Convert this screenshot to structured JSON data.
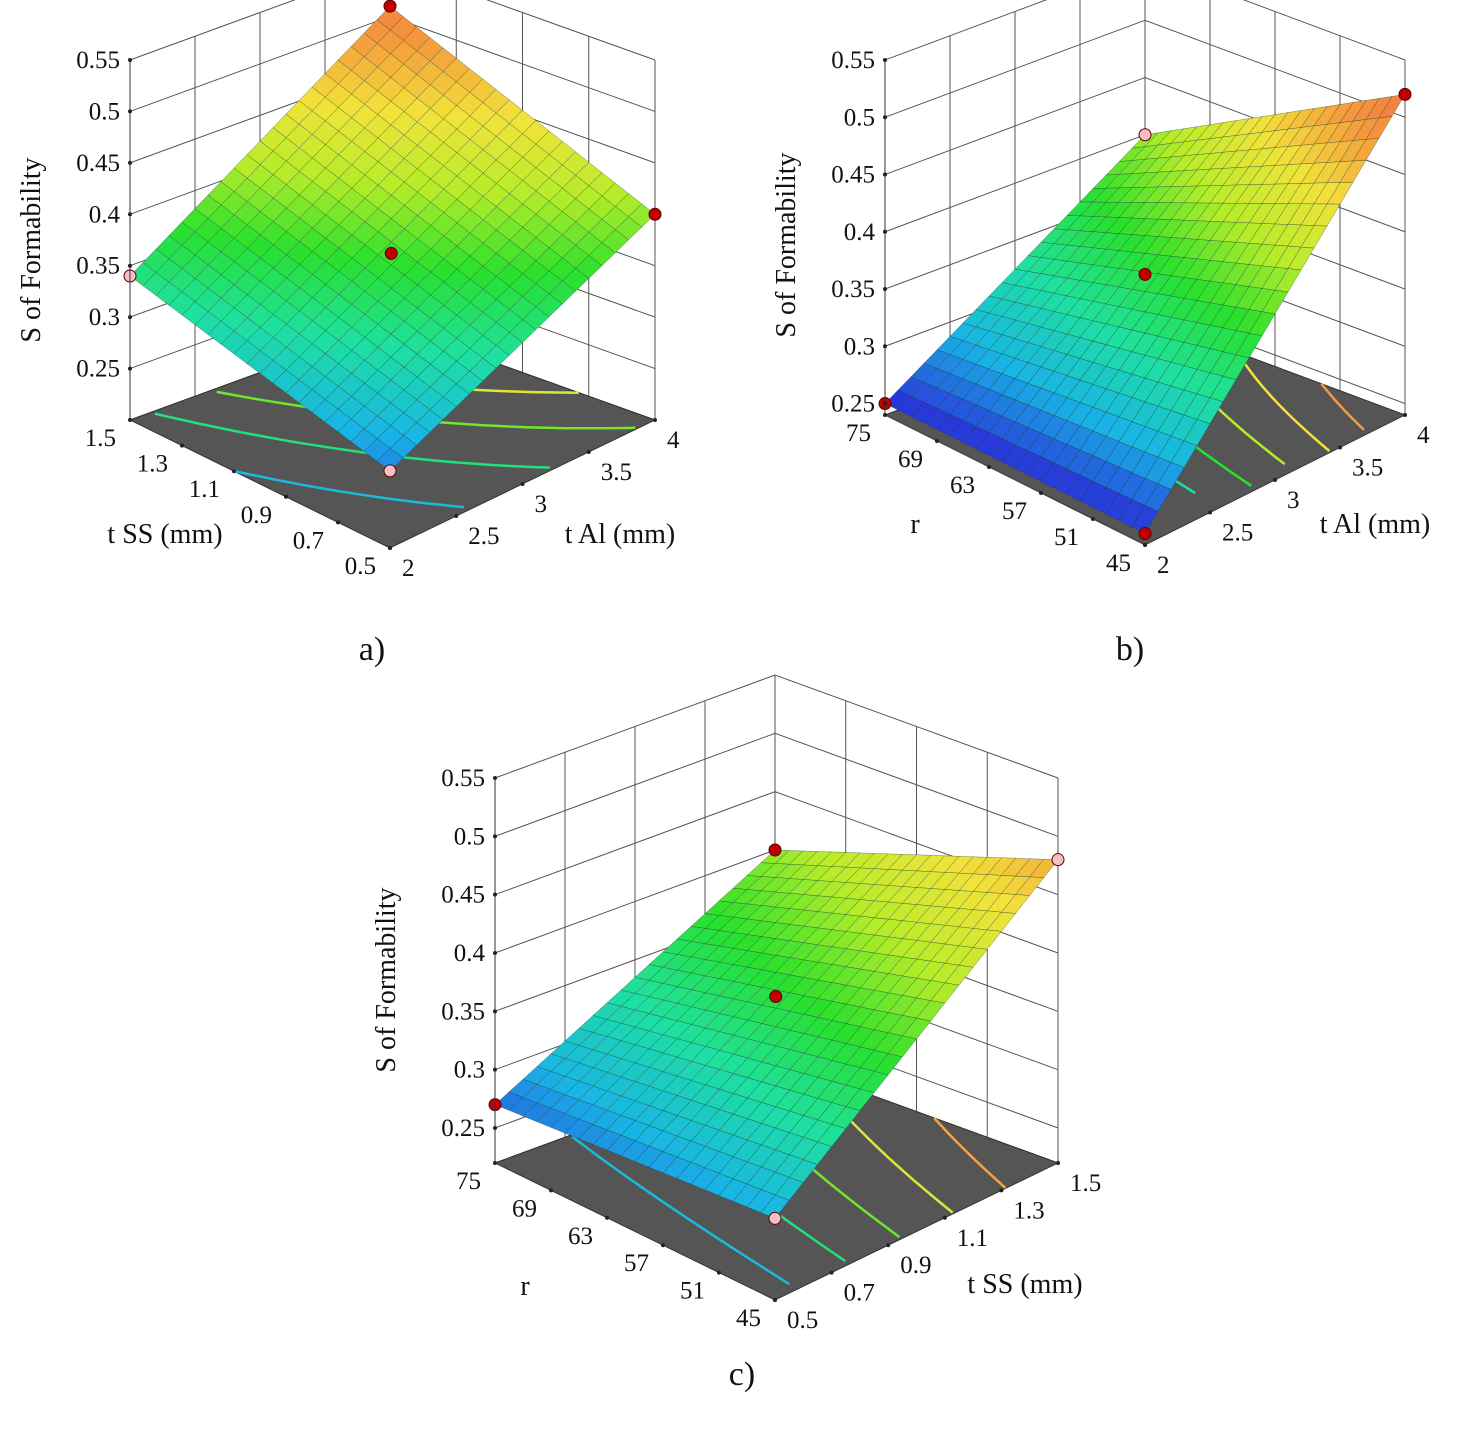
{
  "figure": {
    "panel_labels": [
      "a)",
      "b)",
      "c)"
    ]
  },
  "colors": {
    "floor": "#555555",
    "grid": "#555555",
    "design_point_high": "#c00000",
    "design_point_low": "#f4c0c6",
    "colormap": [
      "#2a2ad8",
      "#19b4e6",
      "#1fe0a0",
      "#29e02d",
      "#b6ec2a",
      "#f2e33a",
      "#f49a3c",
      "#f26a4a"
    ]
  },
  "chart_data": [
    {
      "type": "surface3d",
      "panel": "a)",
      "zlabel": "S of Formability",
      "xlabel": "t SS (mm)",
      "ylabel": "t Al (mm)",
      "zticks": [
        "0.25",
        "0.3",
        "0.35",
        "0.4",
        "0.45",
        "0.5",
        "0.55"
      ],
      "xticks": [
        "1.5",
        "1.3",
        "1.1",
        "0.9",
        "0.7",
        "0.5"
      ],
      "yticks": [
        "2",
        "2.5",
        "3",
        "3.5",
        "4"
      ],
      "zlim": [
        0.2,
        0.55
      ],
      "xlim": [
        0.5,
        1.5
      ],
      "ylim": [
        2,
        4
      ],
      "surface_corners": {
        "x_max_y_min": 0.34,
        "x_max_y_max": 0.51,
        "x_min_y_min": 0.275,
        "x_min_y_max": 0.4
      },
      "design_points": [
        {
          "x": 1.5,
          "y": 2,
          "z": 0.34,
          "marker": "low"
        },
        {
          "x": 1.5,
          "y": 4,
          "z": 0.51,
          "marker": "high"
        },
        {
          "x": 1.0,
          "y": 3,
          "z": 0.37,
          "marker": "high"
        },
        {
          "x": 0.5,
          "y": 4,
          "z": 0.4,
          "marker": "high"
        },
        {
          "x": 0.5,
          "y": 2,
          "z": 0.275,
          "marker": "low"
        }
      ],
      "floor_contours": 5
    },
    {
      "type": "surface3d",
      "panel": "b)",
      "zlabel": "S of Formability",
      "xlabel": "r",
      "ylabel": "t Al (mm)",
      "zticks": [
        "0.25",
        "0.3",
        "0.35",
        "0.4",
        "0.45",
        "0.5",
        "0.55"
      ],
      "xticks": [
        "75",
        "69",
        "63",
        "57",
        "51",
        "45"
      ],
      "yticks": [
        "2",
        "2.5",
        "3",
        "3.5",
        "4"
      ],
      "zlim": [
        0.24,
        0.55
      ],
      "xlim": [
        45,
        75
      ],
      "ylim": [
        2,
        4
      ],
      "surface_corners": {
        "x_max_y_min": 0.25,
        "x_max_y_max": 0.4,
        "x_min_y_min": 0.25,
        "x_min_y_max": 0.52
      },
      "design_points": [
        {
          "x": 75,
          "y": 2,
          "z": 0.25,
          "marker": "high"
        },
        {
          "x": 75,
          "y": 4,
          "z": 0.4,
          "marker": "low"
        },
        {
          "x": 60,
          "y": 3,
          "z": 0.37,
          "marker": "high"
        },
        {
          "x": 45,
          "y": 4,
          "z": 0.52,
          "marker": "high"
        },
        {
          "x": 45,
          "y": 2,
          "z": 0.25,
          "marker": "high"
        }
      ],
      "floor_contours": 6
    },
    {
      "type": "surface3d",
      "panel": "c)",
      "zlabel": "S of Formability",
      "xlabel": "r",
      "ylabel": "t SS (mm)",
      "zticks": [
        "0.25",
        "0.3",
        "0.35",
        "0.4",
        "0.45",
        "0.5",
        "0.55"
      ],
      "xticks": [
        "75",
        "69",
        "63",
        "57",
        "51",
        "45"
      ],
      "yticks": [
        "0.5",
        "0.7",
        "0.9",
        "1.1",
        "1.3",
        "1.5"
      ],
      "zlim": [
        0.22,
        0.55
      ],
      "xlim": [
        45,
        75
      ],
      "ylim": [
        0.5,
        1.5
      ],
      "surface_corners": {
        "x_max_y_min": 0.27,
        "x_max_y_max": 0.4,
        "x_min_y_min": 0.29,
        "x_min_y_max": 0.48
      },
      "design_points": [
        {
          "x": 75,
          "y": 0.5,
          "z": 0.27,
          "marker": "high"
        },
        {
          "x": 75,
          "y": 1.5,
          "z": 0.4,
          "marker": "high"
        },
        {
          "x": 60,
          "y": 1.0,
          "z": 0.37,
          "marker": "high"
        },
        {
          "x": 45,
          "y": 1.5,
          "z": 0.48,
          "marker": "low"
        },
        {
          "x": 45,
          "y": 0.5,
          "z": 0.29,
          "marker": "low"
        }
      ],
      "floor_contours": 5
    }
  ]
}
